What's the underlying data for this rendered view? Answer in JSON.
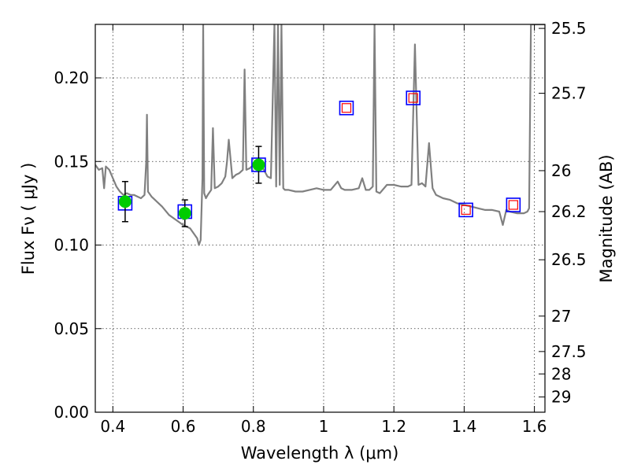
{
  "chart_data": {
    "type": "scatter",
    "xlabel": "Wavelength  λ (μm)",
    "ylabel": "Flux  Fν  ( μJy )",
    "y2label": "Magnitude (AB)",
    "xlim": [
      0.35,
      1.63
    ],
    "ylim": [
      0.0,
      0.232
    ],
    "x_ticks": [
      0.4,
      0.6,
      0.8,
      1.0,
      1.2,
      1.4,
      1.6
    ],
    "x_tick_labels": [
      "0.4",
      "0.6",
      "0.8",
      "1",
      "1.2",
      "1.4",
      "1.6"
    ],
    "y_ticks": [
      0.0,
      0.05,
      0.1,
      0.15,
      0.2
    ],
    "y_tick_labels": [
      "0.00",
      "0.05",
      "0.10",
      "0.15",
      "0.20"
    ],
    "y2_ticks": [
      {
        "flux": 0.2296,
        "label": "25.5"
      },
      {
        "flux": 0.1908,
        "label": "25.7"
      },
      {
        "flux": 0.1445,
        "label": "26"
      },
      {
        "flux": 0.12,
        "label": "26.2"
      },
      {
        "flux": 0.0912,
        "label": "26.5"
      },
      {
        "flux": 0.0575,
        "label": "27"
      },
      {
        "flux": 0.0363,
        "label": "27.5"
      },
      {
        "flux": 0.0229,
        "label": "28"
      },
      {
        "flux": 0.0091,
        "label": "29"
      }
    ],
    "grid": true,
    "series": [
      {
        "type": "line",
        "color": "#808080",
        "x": [
          0.35,
          0.36,
          0.37,
          0.375,
          0.38,
          0.39,
          0.4,
          0.41,
          0.42,
          0.43,
          0.44,
          0.45,
          0.46,
          0.47,
          0.48,
          0.49,
          0.495,
          0.497,
          0.5,
          0.51,
          0.52,
          0.54,
          0.56,
          0.58,
          0.6,
          0.62,
          0.64,
          0.645,
          0.65,
          0.655,
          0.657,
          0.66,
          0.665,
          0.67,
          0.68,
          0.685,
          0.69,
          0.7,
          0.71,
          0.72,
          0.725,
          0.73,
          0.74,
          0.75,
          0.76,
          0.77,
          0.775,
          0.78,
          0.79,
          0.8,
          0.81,
          0.82,
          0.83,
          0.84,
          0.85,
          0.86,
          0.865,
          0.87,
          0.875,
          0.88,
          0.885,
          0.89,
          0.9,
          0.92,
          0.94,
          0.96,
          0.98,
          1.0,
          1.02,
          1.04,
          1.05,
          1.06,
          1.08,
          1.1,
          1.11,
          1.12,
          1.13,
          1.14,
          1.145,
          1.15,
          1.16,
          1.18,
          1.2,
          1.22,
          1.24,
          1.25,
          1.26,
          1.27,
          1.28,
          1.29,
          1.3,
          1.31,
          1.32,
          1.34,
          1.36,
          1.38,
          1.4,
          1.42,
          1.44,
          1.46,
          1.48,
          1.5,
          1.51,
          1.52,
          1.53,
          1.55,
          1.57,
          1.58,
          1.585,
          1.59,
          1.6,
          1.61,
          1.62,
          1.63
        ],
        "y": [
          0.148,
          0.145,
          0.146,
          0.134,
          0.147,
          0.145,
          0.14,
          0.135,
          0.132,
          0.13,
          0.131,
          0.13,
          0.13,
          0.129,
          0.128,
          0.13,
          0.15,
          0.178,
          0.132,
          0.129,
          0.127,
          0.123,
          0.118,
          0.115,
          0.112,
          0.11,
          0.104,
          0.1,
          0.103,
          0.14,
          0.232,
          0.131,
          0.128,
          0.13,
          0.133,
          0.17,
          0.134,
          0.135,
          0.137,
          0.141,
          0.15,
          0.163,
          0.14,
          0.142,
          0.143,
          0.145,
          0.205,
          0.145,
          0.146,
          0.148,
          0.15,
          0.149,
          0.145,
          0.141,
          0.14,
          0.232,
          0.135,
          0.232,
          0.136,
          0.232,
          0.134,
          0.133,
          0.133,
          0.132,
          0.132,
          0.133,
          0.134,
          0.133,
          0.133,
          0.138,
          0.134,
          0.133,
          0.133,
          0.134,
          0.14,
          0.133,
          0.133,
          0.135,
          0.232,
          0.132,
          0.131,
          0.136,
          0.136,
          0.135,
          0.135,
          0.136,
          0.22,
          0.136,
          0.137,
          0.135,
          0.161,
          0.134,
          0.13,
          0.128,
          0.127,
          0.125,
          0.124,
          0.123,
          0.122,
          0.121,
          0.121,
          0.12,
          0.112,
          0.121,
          0.12,
          0.119,
          0.119,
          0.12,
          0.122,
          0.232,
          0.232,
          0.232,
          0.232,
          0.232
        ]
      },
      {
        "type": "scatter",
        "marker": "open-square",
        "color": "#0000ff",
        "x": [
          0.435,
          0.605,
          0.815
        ],
        "y": [
          0.125,
          0.12,
          0.148
        ]
      },
      {
        "type": "scatter",
        "marker": "filled-circle",
        "color": "#00cc00",
        "x": [
          0.435,
          0.605,
          0.815
        ],
        "y": [
          0.126,
          0.119,
          0.148
        ],
        "yerr": [
          0.012,
          0.008,
          0.011
        ]
      },
      {
        "type": "scatter",
        "marker": "double-square",
        "outer_color": "#0000ff",
        "inner_color": "#ff0000",
        "x": [
          1.065,
          1.255,
          1.405,
          1.54
        ],
        "y": [
          0.182,
          0.188,
          0.121,
          0.124
        ]
      }
    ]
  }
}
